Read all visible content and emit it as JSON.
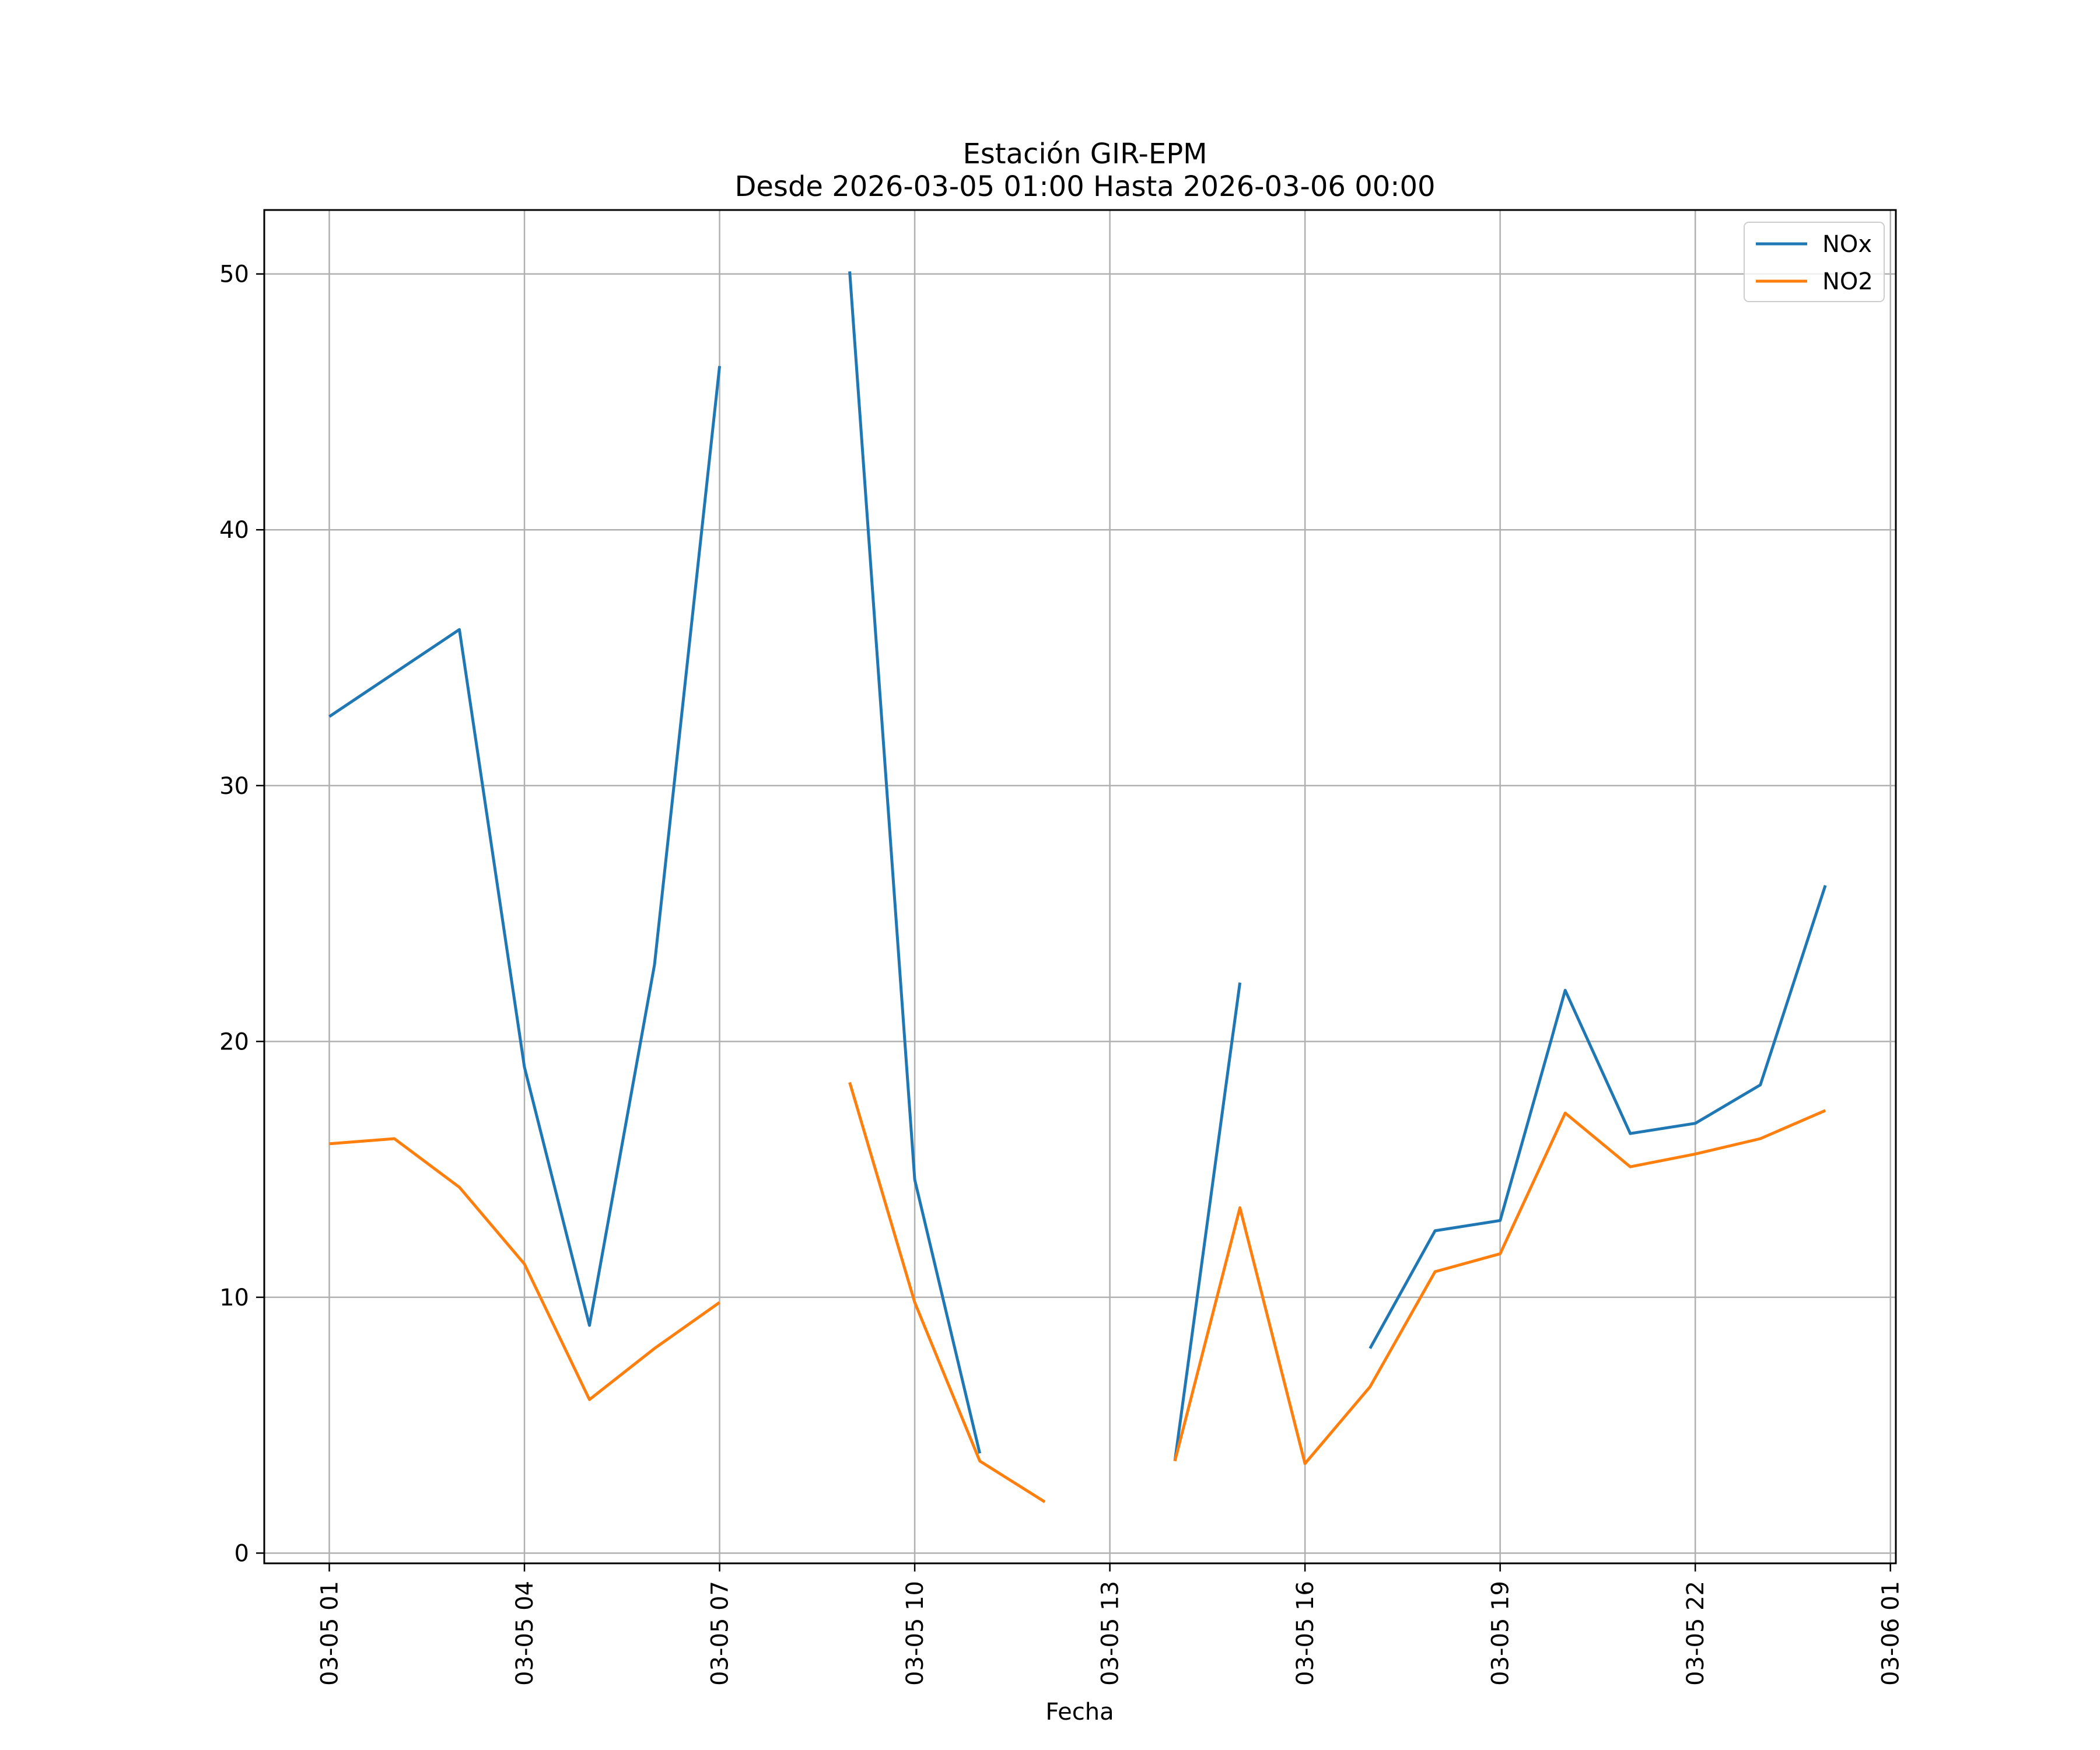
{
  "chart_data": {
    "type": "line",
    "title": "Estación GIR-EPM",
    "subtitle": "Desde 2026-03-05 01:00 Hasta 2026-03-06 00:00",
    "xlabel": "Fecha",
    "ylabel": "",
    "x": [
      "03-05 01:00",
      "03-05 02:00",
      "03-05 03:00",
      "03-05 04:00",
      "03-05 05:00",
      "03-05 06:00",
      "03-05 07:00",
      "03-05 08:00",
      "03-05 09:00",
      "03-05 10:00",
      "03-05 11:00",
      "03-05 12:00",
      "03-05 13:00",
      "03-05 14:00",
      "03-05 15:00",
      "03-05 16:00",
      "03-05 17:00",
      "03-05 18:00",
      "03-05 19:00",
      "03-05 20:00",
      "03-05 21:00",
      "03-05 22:00",
      "03-05 23:00",
      "03-06 00:00"
    ],
    "xlim": [
      "03-05 00:00",
      "03-06 01:05"
    ],
    "ylim": [
      -0.4,
      52.5
    ],
    "xticks": [
      "03-05 01",
      "03-05 04",
      "03-05 07",
      "03-05 10",
      "03-05 13",
      "03-05 16",
      "03-05 19",
      "03-05 22",
      "03-06 01"
    ],
    "yticks": [
      0,
      10,
      20,
      30,
      40,
      50
    ],
    "grid": true,
    "legend_position": "top-right",
    "series": [
      {
        "name": "NOx",
        "color": "#1f77b4",
        "values": [
          32.7,
          34.4,
          36.1,
          19.0,
          8.9,
          23.0,
          46.4,
          null,
          50.1,
          14.6,
          3.9,
          null,
          null,
          3.6,
          22.3,
          null,
          8.0,
          12.6,
          13.0,
          22.0,
          16.4,
          16.8,
          18.3,
          26.1
        ]
      },
      {
        "name": "NO2",
        "color": "#ff7f0e",
        "values": [
          16.0,
          16.2,
          14.3,
          11.3,
          6.0,
          8.0,
          9.8,
          null,
          18.4,
          9.8,
          3.6,
          2.0,
          null,
          3.6,
          13.5,
          3.5,
          6.5,
          11.0,
          11.7,
          17.2,
          15.1,
          15.6,
          16.2,
          17.3
        ]
      }
    ]
  }
}
